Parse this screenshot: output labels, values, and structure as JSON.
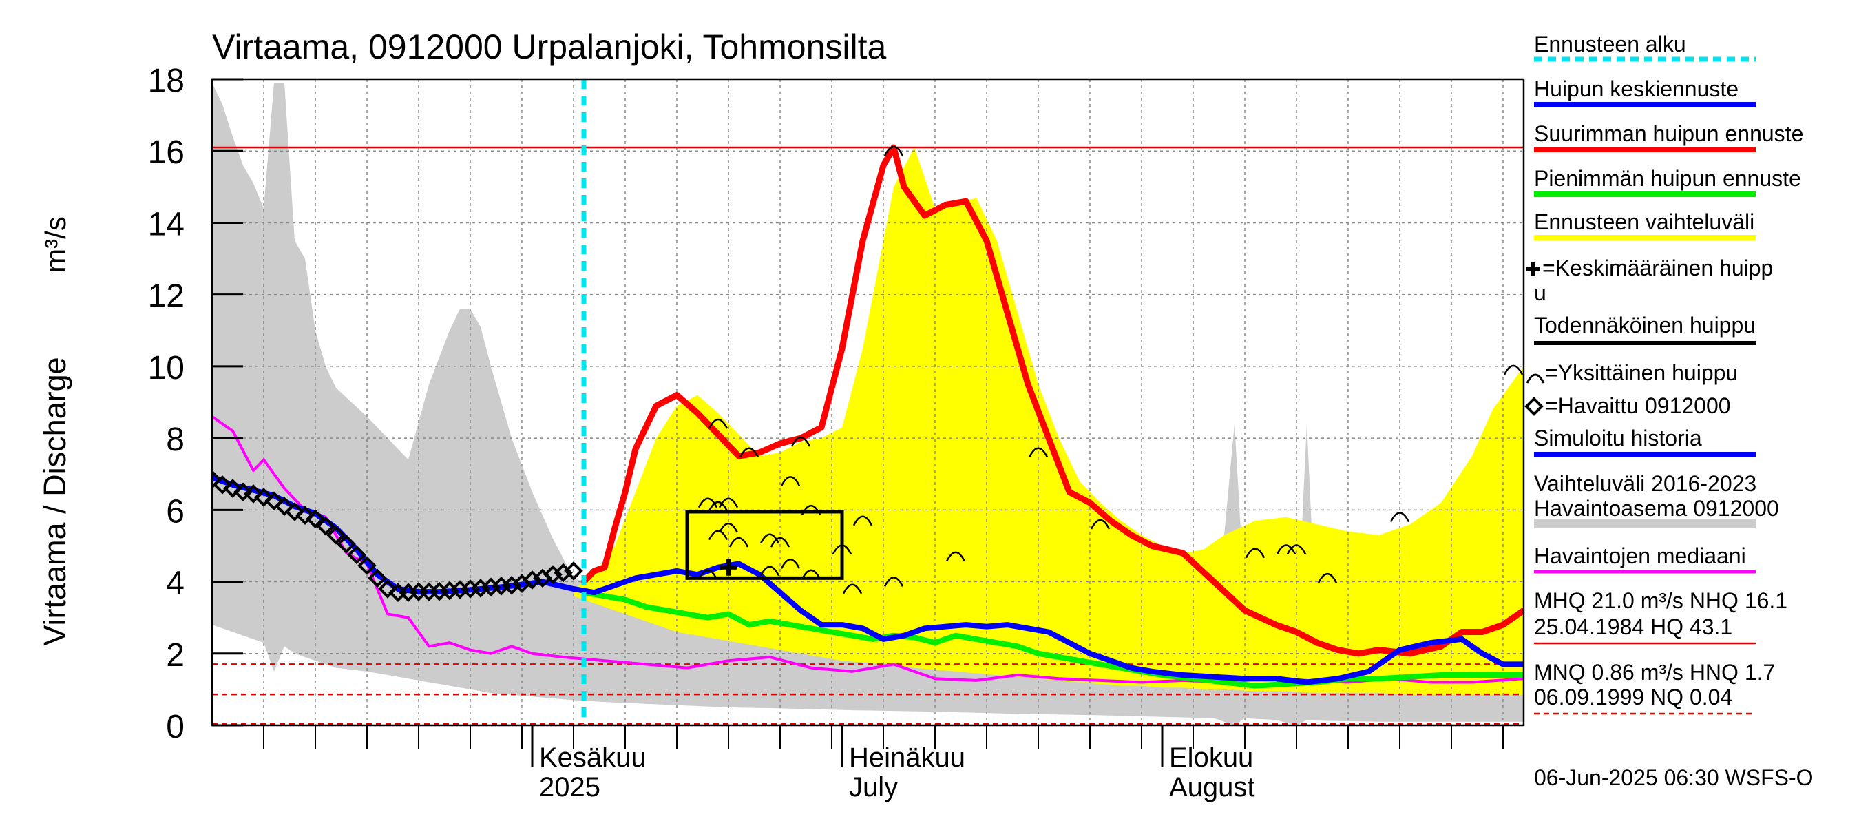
{
  "chart_data": {
    "type": "area",
    "title": "Virtaama, 0912000 Urpalanjoki, Tohmonsilta",
    "ylabel": "Virtaama / Discharge",
    "yunit": "m³/s",
    "ylim": [
      0,
      18
    ],
    "yticks": [
      0,
      2,
      4,
      6,
      8,
      10,
      12,
      14,
      16,
      18
    ],
    "xlim": [
      "2025-05-01",
      "2025-09-05"
    ],
    "month_labels": [
      {
        "date": "2025-06-01",
        "line1": "Kesäkuu",
        "line2": "2025"
      },
      {
        "date": "2025-07-01",
        "line1": "Heinäkuu",
        "line2": "July"
      },
      {
        "date": "2025-08-01",
        "line1": "Elokuu",
        "line2": "August"
      }
    ],
    "grid": true,
    "legend_position": "right",
    "forecast_start": "2025-06-06",
    "colors": {
      "forecast_start": "#00e5ee",
      "mean_peak": "#0000ff",
      "max_peak": "#ff0000",
      "min_peak": "#00ee00",
      "forecast_range": "#ffff00",
      "history_range": "#cccccc",
      "median": "#ff00ff",
      "reference_line": "#e00000",
      "box": "#000000"
    },
    "legend": [
      {
        "label": "Ennusteen alku",
        "color": "#00e5ee",
        "style": "dashed"
      },
      {
        "label": "Huipun keskiennuste",
        "color": "#0000ff",
        "style": "line"
      },
      {
        "label": "Suurimman huipun ennuste",
        "color": "#ff0000",
        "style": "line"
      },
      {
        "label": "Pienimmän huipun ennuste",
        "color": "#00ee00",
        "style": "line"
      },
      {
        "label": "Ennusteen vaihteluväli",
        "color": "#ffff00",
        "style": "line"
      },
      {
        "label": "=Keskimääräinen huipp",
        "label2": "u",
        "style": "plus"
      },
      {
        "label": "Todennäköinen huippu",
        "color": "#000000",
        "style": "line"
      },
      {
        "label": "=Yksittäinen huippu",
        "style": "arc"
      },
      {
        "label": "=Havaittu 0912000",
        "style": "diamond"
      },
      {
        "label": "Simuloitu historia",
        "color": "#0000ff",
        "style": "line"
      },
      {
        "label": "Vaihteluväli 2016-2023",
        "label2": " Havaintoasema 0912000",
        "color": "#cccccc",
        "style": "thick"
      },
      {
        "label": "Havaintojen mediaani",
        "color": "#ff00ff",
        "style": "line"
      }
    ],
    "stats": {
      "line1": "MHQ 21.0 m³/s NHQ 16.1",
      "line2": "25.04.1984 HQ 43.1",
      "line3": "MNQ 0.86 m³/s HNQ  1.7",
      "line4": "06.09.1999 NQ 0.04"
    },
    "footer": "06-Jun-2025 06:30 WSFS-O",
    "reference_lines": [
      {
        "value": 16.1,
        "style": "solid"
      },
      {
        "value": 1.7,
        "style": "dashed"
      },
      {
        "value": 0.86,
        "style": "dashed"
      },
      {
        "value": 0.04,
        "style": "dashed"
      }
    ],
    "likely_peak_box": {
      "x_start": "2025-06-16",
      "x_end": "2025-07-01",
      "y_low": 4.1,
      "y_high": 5.95
    },
    "mean_peak_marker": {
      "x": "2025-06-20",
      "y": 4.4
    },
    "observed": {
      "x": [
        "2025-05-01",
        "2025-05-02",
        "2025-05-03",
        "2025-05-04",
        "2025-05-05",
        "2025-05-06",
        "2025-05-07",
        "2025-05-08",
        "2025-05-09",
        "2025-05-10",
        "2025-05-11",
        "2025-05-12",
        "2025-05-13",
        "2025-05-14",
        "2025-05-15",
        "2025-05-16",
        "2025-05-17",
        "2025-05-18",
        "2025-05-19",
        "2025-05-20",
        "2025-05-21",
        "2025-05-22",
        "2025-05-23",
        "2025-05-24",
        "2025-05-25",
        "2025-05-26",
        "2025-05-27",
        "2025-05-28",
        "2025-05-29",
        "2025-05-30",
        "2025-05-31",
        "2025-06-01",
        "2025-06-02",
        "2025-06-03",
        "2025-06-04",
        "2025-06-05"
      ],
      "y": [
        6.85,
        6.7,
        6.6,
        6.5,
        6.45,
        6.35,
        6.25,
        6.1,
        5.95,
        5.85,
        5.75,
        5.55,
        5.3,
        5.05,
        4.75,
        4.45,
        4.1,
        3.8,
        3.7,
        3.7,
        3.72,
        3.72,
        3.73,
        3.75,
        3.78,
        3.8,
        3.82,
        3.85,
        3.88,
        3.9,
        3.95,
        4.05,
        4.1,
        4.2,
        4.25,
        4.3
      ]
    },
    "history_range": {
      "x": [
        "2025-05-01",
        "2025-05-02",
        "2025-05-03",
        "2025-05-04",
        "2025-05-05",
        "2025-05-06",
        "2025-05-07",
        "2025-05-08",
        "2025-05-09",
        "2025-05-10",
        "2025-05-11",
        "2025-05-12",
        "2025-05-13",
        "2025-05-16",
        "2025-05-18",
        "2025-05-20",
        "2025-05-22",
        "2025-05-24",
        "2025-05-25",
        "2025-05-26",
        "2025-05-27",
        "2025-05-28",
        "2025-05-30",
        "2025-06-01",
        "2025-06-03",
        "2025-06-05",
        "2025-06-08",
        "2025-06-12",
        "2025-06-16",
        "2025-06-20",
        "2025-06-24",
        "2025-06-28",
        "2025-07-02",
        "2025-07-06",
        "2025-07-10",
        "2025-07-14",
        "2025-07-18",
        "2025-07-22",
        "2025-07-26",
        "2025-07-30",
        "2025-08-03",
        "2025-08-06",
        "2025-08-08",
        "2025-08-09",
        "2025-08-10",
        "2025-08-12",
        "2025-08-14",
        "2025-08-15",
        "2025-08-16",
        "2025-08-18",
        "2025-08-22",
        "2025-08-26",
        "2025-08-30",
        "2025-09-05"
      ],
      "upper": [
        17.9,
        17.3,
        16.4,
        15.6,
        15.1,
        14.4,
        17.9,
        17.9,
        13.5,
        13.0,
        11.0,
        10.0,
        9.4,
        8.6,
        8.0,
        7.4,
        9.5,
        11.0,
        11.6,
        11.6,
        11.1,
        10.0,
        8.0,
        6.5,
        5.2,
        4.1,
        3.8,
        4.0,
        4.2,
        4.4,
        4.3,
        3.9,
        3.3,
        2.9,
        2.8,
        2.9,
        2.8,
        2.6,
        2.45,
        2.4,
        2.3,
        2.2,
        8.4,
        3.5,
        2.2,
        2.1,
        2.3,
        8.4,
        2.2,
        2.3,
        2.1,
        2.05,
        2.0,
        2.0
      ],
      "lower": [
        2.8,
        2.7,
        2.6,
        2.5,
        2.4,
        2.3,
        1.5,
        2.2,
        2.0,
        1.9,
        1.8,
        1.7,
        1.6,
        1.5,
        1.4,
        1.3,
        1.2,
        1.1,
        1.05,
        1.0,
        0.95,
        0.9,
        0.85,
        0.8,
        0.75,
        0.7,
        0.65,
        0.6,
        0.55,
        0.5,
        0.48,
        0.45,
        0.42,
        0.4,
        0.38,
        0.35,
        0.32,
        0.3,
        0.28,
        0.25,
        0.22,
        0.2,
        0.0,
        0.2,
        0.18,
        0.15,
        0.0,
        0.15,
        0.13,
        0.12,
        0.1,
        0.1,
        0.1,
        0.1
      ]
    },
    "median": {
      "x": [
        "2025-05-01",
        "2025-05-03",
        "2025-05-05",
        "2025-05-06",
        "2025-05-08",
        "2025-05-10",
        "2025-05-12",
        "2025-05-14",
        "2025-05-16",
        "2025-05-18",
        "2025-05-20",
        "2025-05-22",
        "2025-05-24",
        "2025-05-26",
        "2025-05-28",
        "2025-05-30",
        "2025-06-01",
        "2025-06-04",
        "2025-06-08",
        "2025-06-12",
        "2025-06-16",
        "2025-06-20",
        "2025-06-24",
        "2025-06-28",
        "2025-07-02",
        "2025-07-06",
        "2025-07-10",
        "2025-07-14",
        "2025-07-18",
        "2025-07-22",
        "2025-07-26",
        "2025-07-30",
        "2025-08-03",
        "2025-08-07",
        "2025-08-11",
        "2025-08-15",
        "2025-08-19",
        "2025-08-23",
        "2025-08-27",
        "2025-08-31",
        "2025-09-05"
      ],
      "y": [
        8.6,
        8.2,
        7.1,
        7.4,
        6.6,
        6.0,
        5.8,
        4.8,
        4.5,
        3.1,
        3.0,
        2.2,
        2.3,
        2.1,
        2.0,
        2.2,
        2.0,
        1.9,
        1.8,
        1.7,
        1.6,
        1.8,
        1.9,
        1.6,
        1.5,
        1.7,
        1.3,
        1.25,
        1.4,
        1.3,
        1.25,
        1.2,
        1.25,
        1.2,
        1.3,
        1.25,
        1.2,
        1.3,
        1.2,
        1.2,
        1.3
      ]
    },
    "forecast_range": {
      "x": [
        "2025-06-05",
        "2025-06-07",
        "2025-06-09",
        "2025-06-11",
        "2025-06-13",
        "2025-06-15",
        "2025-06-17",
        "2025-06-19",
        "2025-06-21",
        "2025-06-23",
        "2025-06-25",
        "2025-06-27",
        "2025-06-29",
        "2025-07-01",
        "2025-07-03",
        "2025-07-06",
        "2025-07-08",
        "2025-07-10",
        "2025-07-12",
        "2025-07-14",
        "2025-07-16",
        "2025-07-18",
        "2025-07-20",
        "2025-07-22",
        "2025-07-24",
        "2025-07-26",
        "2025-07-28",
        "2025-07-30",
        "2025-08-01",
        "2025-08-03",
        "2025-08-05",
        "2025-08-07",
        "2025-08-10",
        "2025-08-13",
        "2025-08-16",
        "2025-08-19",
        "2025-08-22",
        "2025-08-25",
        "2025-08-28",
        "2025-08-31",
        "2025-09-02",
        "2025-09-05"
      ],
      "upper": [
        3.8,
        4.2,
        5.0,
        6.5,
        8.0,
        8.9,
        9.2,
        8.7,
        8.1,
        7.5,
        7.6,
        7.9,
        8.0,
        8.3,
        10.5,
        15.0,
        16.1,
        14.4,
        14.5,
        14.7,
        13.5,
        11.5,
        9.5,
        8.0,
        6.8,
        6.2,
        5.7,
        5.3,
        5.0,
        4.8,
        4.9,
        5.3,
        5.7,
        5.8,
        5.6,
        5.4,
        5.3,
        5.6,
        6.2,
        7.5,
        8.8,
        10.0
      ],
      "lower": [
        3.6,
        3.4,
        3.2,
        3.0,
        2.8,
        2.6,
        2.5,
        2.4,
        2.3,
        2.2,
        2.1,
        2.0,
        1.9,
        1.8,
        1.75,
        1.7,
        1.6,
        1.55,
        1.5,
        1.45,
        1.4,
        1.35,
        1.3,
        1.25,
        1.2,
        1.15,
        1.1,
        1.1,
        1.05,
        1.05,
        1.0,
        1.0,
        0.95,
        0.95,
        0.9,
        0.9,
        0.9,
        0.85,
        0.85,
        0.85,
        0.85,
        0.85
      ]
    },
    "series": [
      {
        "name": "Suurimman huipun ennuste",
        "color": "#ff0000",
        "x": [
          "2025-06-06",
          "2025-06-07",
          "2025-06-08",
          "2025-06-09",
          "2025-06-10",
          "2025-06-11",
          "2025-06-13",
          "2025-06-15",
          "2025-06-17",
          "2025-06-19",
          "2025-06-21",
          "2025-06-23",
          "2025-06-25",
          "2025-06-27",
          "2025-06-29",
          "2025-07-01",
          "2025-07-03",
          "2025-07-05",
          "2025-07-06",
          "2025-07-07",
          "2025-07-09",
          "2025-07-11",
          "2025-07-13",
          "2025-07-15",
          "2025-07-17",
          "2025-07-19",
          "2025-07-21",
          "2025-07-23",
          "2025-07-25",
          "2025-07-27",
          "2025-07-29",
          "2025-07-31",
          "2025-08-03",
          "2025-08-06",
          "2025-08-09",
          "2025-08-12",
          "2025-08-14",
          "2025-08-16",
          "2025-08-18",
          "2025-08-20",
          "2025-08-22",
          "2025-08-25",
          "2025-08-28",
          "2025-08-30",
          "2025-09-01",
          "2025-09-03",
          "2025-09-05"
        ],
        "y": [
          4.0,
          4.3,
          4.4,
          5.5,
          6.5,
          7.7,
          8.9,
          9.2,
          8.7,
          8.1,
          7.5,
          7.6,
          7.85,
          8.0,
          8.3,
          10.5,
          13.5,
          15.6,
          16.1,
          15.0,
          14.2,
          14.5,
          14.6,
          13.5,
          11.5,
          9.5,
          8.0,
          6.5,
          6.2,
          5.7,
          5.3,
          5.0,
          4.8,
          4.0,
          3.2,
          2.8,
          2.6,
          2.3,
          2.1,
          2.0,
          2.1,
          2.0,
          2.2,
          2.6,
          2.6,
          2.8,
          3.2
        ]
      },
      {
        "name": "Pienimmän huipun ennuste",
        "color": "#00ee00",
        "x": [
          "2025-06-06",
          "2025-06-08",
          "2025-06-10",
          "2025-06-12",
          "2025-06-14",
          "2025-06-16",
          "2025-06-18",
          "2025-06-20",
          "2025-06-22",
          "2025-06-24",
          "2025-06-26",
          "2025-06-28",
          "2025-06-30",
          "2025-07-02",
          "2025-07-04",
          "2025-07-06",
          "2025-07-08",
          "2025-07-10",
          "2025-07-12",
          "2025-07-14",
          "2025-07-16",
          "2025-07-18",
          "2025-07-20",
          "2025-07-22",
          "2025-07-24",
          "2025-07-26",
          "2025-07-28",
          "2025-07-30",
          "2025-08-01",
          "2025-08-04",
          "2025-08-07",
          "2025-08-10",
          "2025-08-13",
          "2025-08-16",
          "2025-08-19",
          "2025-08-22",
          "2025-08-25",
          "2025-08-28",
          "2025-08-31",
          "2025-09-03",
          "2025-09-05"
        ],
        "y": [
          3.7,
          3.6,
          3.5,
          3.3,
          3.2,
          3.1,
          3.0,
          3.1,
          2.8,
          2.9,
          2.8,
          2.7,
          2.6,
          2.5,
          2.4,
          2.5,
          2.45,
          2.3,
          2.5,
          2.4,
          2.3,
          2.2,
          2.0,
          1.9,
          1.8,
          1.7,
          1.6,
          1.5,
          1.4,
          1.3,
          1.2,
          1.1,
          1.15,
          1.2,
          1.3,
          1.3,
          1.35,
          1.4,
          1.4,
          1.4,
          1.4
        ]
      },
      {
        "name": "Huipun keskiennuste",
        "color": "#0000ff",
        "x": [
          "2025-06-05",
          "2025-06-07",
          "2025-06-09",
          "2025-06-11",
          "2025-06-13",
          "2025-06-15",
          "2025-06-17",
          "2025-06-19",
          "2025-06-21",
          "2025-06-23",
          "2025-06-25",
          "2025-06-27",
          "2025-06-29",
          "2025-07-01",
          "2025-07-03",
          "2025-07-05",
          "2025-07-07",
          "2025-07-09",
          "2025-07-11",
          "2025-07-13",
          "2025-07-15",
          "2025-07-17",
          "2025-07-19",
          "2025-07-21",
          "2025-07-23",
          "2025-07-25",
          "2025-07-27",
          "2025-07-29",
          "2025-07-31",
          "2025-08-03",
          "2025-08-06",
          "2025-08-09",
          "2025-08-12",
          "2025-08-15",
          "2025-08-18",
          "2025-08-21",
          "2025-08-24",
          "2025-08-27",
          "2025-08-30",
          "2025-09-01",
          "2025-09-03",
          "2025-09-05"
        ],
        "y": [
          3.8,
          3.7,
          3.9,
          4.1,
          4.2,
          4.3,
          4.2,
          4.4,
          4.5,
          4.2,
          3.7,
          3.2,
          2.8,
          2.8,
          2.7,
          2.4,
          2.5,
          2.7,
          2.75,
          2.8,
          2.75,
          2.8,
          2.7,
          2.6,
          2.3,
          2.0,
          1.8,
          1.6,
          1.5,
          1.4,
          1.35,
          1.3,
          1.3,
          1.2,
          1.3,
          1.5,
          2.1,
          2.3,
          2.4,
          2.0,
          1.7,
          1.7
        ]
      },
      {
        "name": "Simuloitu historia",
        "color": "#0000ff",
        "x": [
          "2025-05-01",
          "2025-05-03",
          "2025-05-05",
          "2025-05-07",
          "2025-05-09",
          "2025-05-11",
          "2025-05-13",
          "2025-05-15",
          "2025-05-17",
          "2025-05-19",
          "2025-05-21",
          "2025-05-23",
          "2025-05-25",
          "2025-05-27",
          "2025-05-29",
          "2025-05-31",
          "2025-06-02",
          "2025-06-05"
        ],
        "y": [
          6.9,
          6.7,
          6.55,
          6.4,
          6.1,
          5.9,
          5.5,
          4.9,
          4.2,
          3.8,
          3.72,
          3.72,
          3.75,
          3.8,
          3.85,
          3.92,
          4.0,
          3.8
        ]
      }
    ],
    "peak_arcs": [
      {
        "x": "2025-06-19",
        "y": 8.5
      },
      {
        "x": "2025-06-18",
        "y": 6.3
      },
      {
        "x": "2025-06-19",
        "y": 6.2
      },
      {
        "x": "2025-06-20",
        "y": 6.3
      },
      {
        "x": "2025-06-20",
        "y": 5.6
      },
      {
        "x": "2025-06-19",
        "y": 5.4
      },
      {
        "x": "2025-06-21",
        "y": 5.2
      },
      {
        "x": "2025-06-22",
        "y": 7.7
      },
      {
        "x": "2025-06-24",
        "y": 5.3
      },
      {
        "x": "2025-06-25",
        "y": 5.2
      },
      {
        "x": "2025-06-26",
        "y": 6.9
      },
      {
        "x": "2025-06-27",
        "y": 8.0
      },
      {
        "x": "2025-06-28",
        "y": 6.1
      },
      {
        "x": "2025-06-26",
        "y": 4.6
      },
      {
        "x": "2025-06-24",
        "y": 4.4
      },
      {
        "x": "2025-06-28",
        "y": 4.3
      },
      {
        "x": "2025-06-18",
        "y": 4.3
      },
      {
        "x": "2025-07-01",
        "y": 5.0
      },
      {
        "x": "2025-07-02",
        "y": 3.9
      },
      {
        "x": "2025-07-03",
        "y": 5.8
      },
      {
        "x": "2025-07-06",
        "y": 16.1
      },
      {
        "x": "2025-07-06",
        "y": 4.1
      },
      {
        "x": "2025-07-12",
        "y": 4.8
      },
      {
        "x": "2025-07-20",
        "y": 7.7
      },
      {
        "x": "2025-07-26",
        "y": 5.7
      },
      {
        "x": "2025-08-10",
        "y": 4.9
      },
      {
        "x": "2025-08-13",
        "y": 5.0
      },
      {
        "x": "2025-08-14",
        "y": 5.0
      },
      {
        "x": "2025-08-17",
        "y": 4.2
      },
      {
        "x": "2025-08-24",
        "y": 5.9
      },
      {
        "x": "2025-09-04",
        "y": 10.0
      }
    ]
  }
}
